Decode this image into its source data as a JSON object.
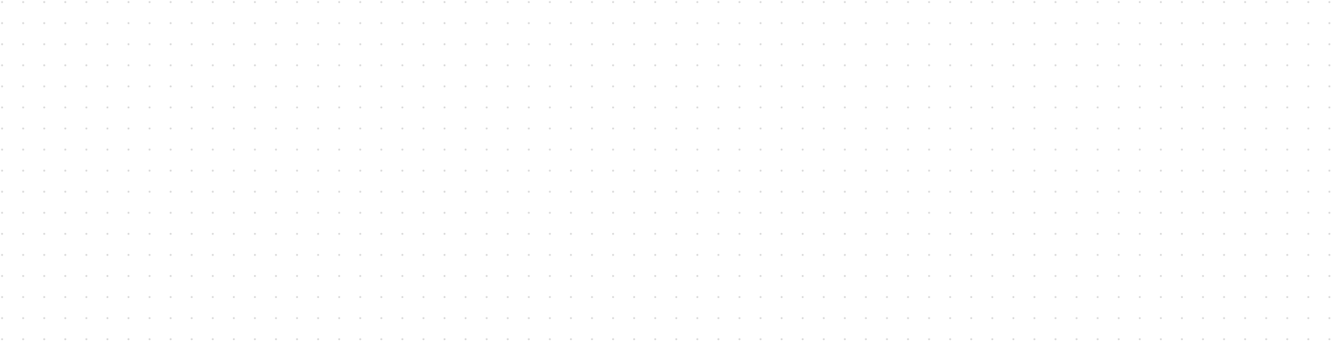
{
  "canvas": {
    "background_color": "#ffffff",
    "dot_color": "#d6d6d6",
    "pattern": "dot-grid"
  }
}
